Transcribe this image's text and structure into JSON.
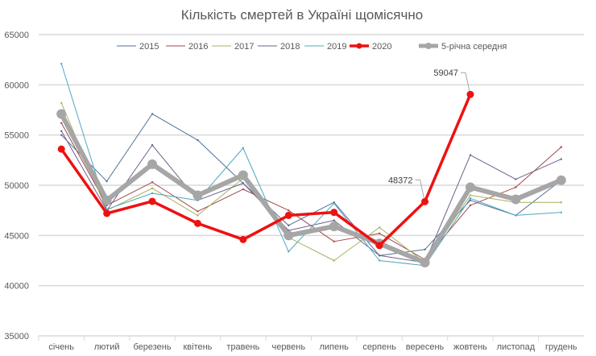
{
  "chart_data": {
    "type": "line",
    "title": "Кількість смертей в Україні щомісячно",
    "categories": [
      "січень",
      "лютий",
      "березень",
      "квітень",
      "травень",
      "червень",
      "липень",
      "серпень",
      "вересень",
      "жовтень",
      "листопад",
      "грудень"
    ],
    "ylim": [
      35000,
      65000
    ],
    "yticks": [
      "35000",
      "40000",
      "45000",
      "50000",
      "55000",
      "60000",
      "65000"
    ],
    "grid": true,
    "legend": "top",
    "series": [
      {
        "name": "2015",
        "color": "#4f6f96",
        "width": 1,
        "values": [
          55000,
          50400,
          57100,
          54500,
          50200,
          46000,
          48300,
          43000,
          43600,
          48500,
          47000,
          50500
        ]
      },
      {
        "name": "2016",
        "color": "#a0494a",
        "width": 1,
        "values": [
          56200,
          48000,
          50300,
          47400,
          49600,
          47500,
          44400,
          45200,
          42600,
          48000,
          49800,
          53800
        ]
      },
      {
        "name": "2017",
        "color": "#a8b060",
        "width": 1,
        "values": [
          58200,
          47500,
          49700,
          47000,
          50700,
          44800,
          42500,
          45800,
          42300,
          49000,
          48300,
          48300
        ]
      },
      {
        "name": "2018",
        "color": "#6f5f8a",
        "width": 1,
        "values": [
          55400,
          47500,
          54000,
          48500,
          50200,
          45500,
          46500,
          43000,
          42300,
          53000,
          50600,
          52600
        ]
      },
      {
        "name": "2019",
        "color": "#4fa8c0",
        "width": 1,
        "values": [
          62100,
          47600,
          49200,
          48500,
          53700,
          43400,
          48200,
          42500,
          42000,
          48700,
          47000,
          47300
        ]
      },
      {
        "name": "2020",
        "color": "#ee1111",
        "width": 3.5,
        "values": [
          53600,
          47200,
          48400,
          46200,
          44600,
          47000,
          47300,
          44000,
          48372,
          59047,
          null,
          null
        ]
      },
      {
        "name": "5-річна середня",
        "color": "#a6a6a6",
        "width": 6,
        "values": [
          57100,
          48500,
          52100,
          49000,
          51000,
          45000,
          45900,
          44200,
          42300,
          49800,
          48600,
          50500
        ]
      }
    ],
    "annotations": [
      {
        "series": "2020",
        "category": "вересень",
        "text": "48372"
      },
      {
        "series": "2020",
        "category": "жовтень",
        "text": "59047"
      }
    ]
  }
}
